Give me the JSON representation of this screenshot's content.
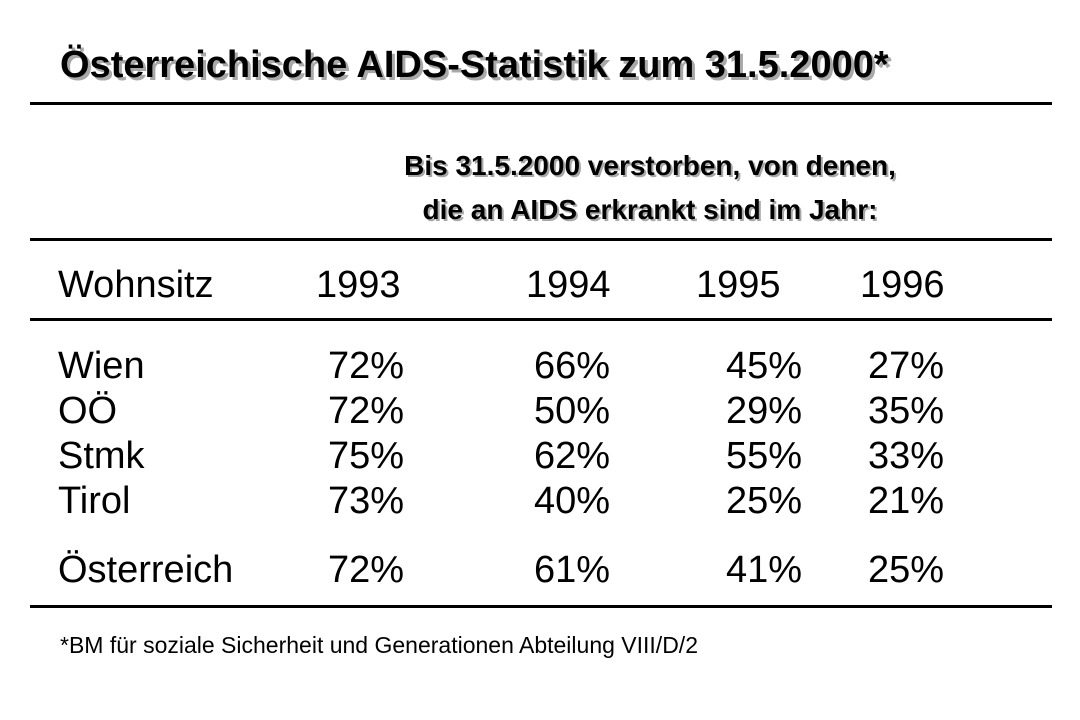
{
  "title": "Österreichische AIDS-Statistik zum 31.5.2000*",
  "subtitle": {
    "line1": "Bis 31.5.2000 verstorben, von denen,",
    "line2": "die an AIDS erkrankt sind im Jahr:"
  },
  "table": {
    "columns": [
      "Wohnsitz",
      "1993",
      "1994",
      "1995",
      "1996"
    ],
    "rows": [
      {
        "region": "Wien",
        "values": [
          "72%",
          "66%",
          "45%",
          "27%"
        ]
      },
      {
        "region": "OÖ",
        "values": [
          "72%",
          "50%",
          "29%",
          "35%"
        ]
      },
      {
        "region": "Stmk",
        "values": [
          "75%",
          "62%",
          "55%",
          "33%"
        ]
      },
      {
        "region": "Tirol",
        "values": [
          "73%",
          "40%",
          "25%",
          "21%"
        ]
      },
      {
        "region": "Österreich",
        "values": [
          "72%",
          "61%",
          "41%",
          "25%"
        ]
      }
    ]
  },
  "footnote": "*BM für soziale Sicherheit und Generationen Abteilung VIII/D/2"
}
